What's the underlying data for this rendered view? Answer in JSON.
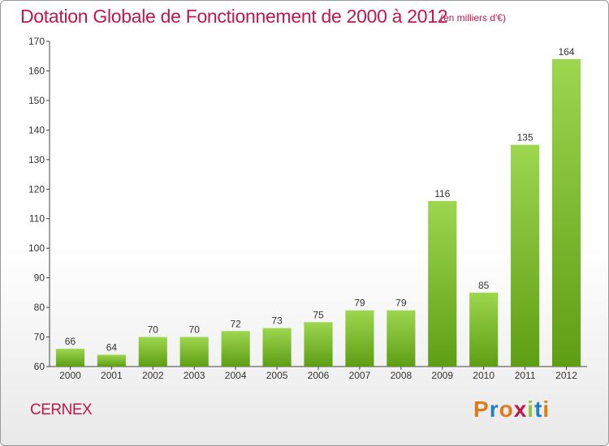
{
  "header": {
    "title": "Dotation Globale de Fonctionnement de 2000 à 2012",
    "unit": "(en milliers d'€)"
  },
  "footer": {
    "commune": "CERNEX",
    "logo_text": "Proxiti"
  },
  "colors": {
    "title": "#c0174c",
    "bar_light": "#9dd64f",
    "bar_dark": "#5e9e14",
    "logo_letters": [
      "#e07b1a",
      "#1f7fc4",
      "#e07b1a",
      "#c0174c",
      "#8dc63f",
      "#1f7fc4",
      "#e07b1a"
    ]
  },
  "chart_data": {
    "type": "bar",
    "categories": [
      "2000",
      "2001",
      "2002",
      "2003",
      "2004",
      "2005",
      "2006",
      "2007",
      "2008",
      "2009",
      "2010",
      "2011",
      "2012"
    ],
    "values": [
      66,
      64,
      70,
      70,
      72,
      73,
      75,
      79,
      79,
      116,
      85,
      135,
      164
    ],
    "title": "Dotation Globale de Fonctionnement de 2000 à 2012",
    "subtitle": "(en milliers d'€)",
    "xlabel": "",
    "ylabel": "",
    "ylim": [
      60,
      170
    ],
    "yticks": [
      60,
      70,
      80,
      90,
      100,
      110,
      120,
      130,
      140,
      150,
      160,
      170
    ],
    "grid": false,
    "data_labels": true
  }
}
